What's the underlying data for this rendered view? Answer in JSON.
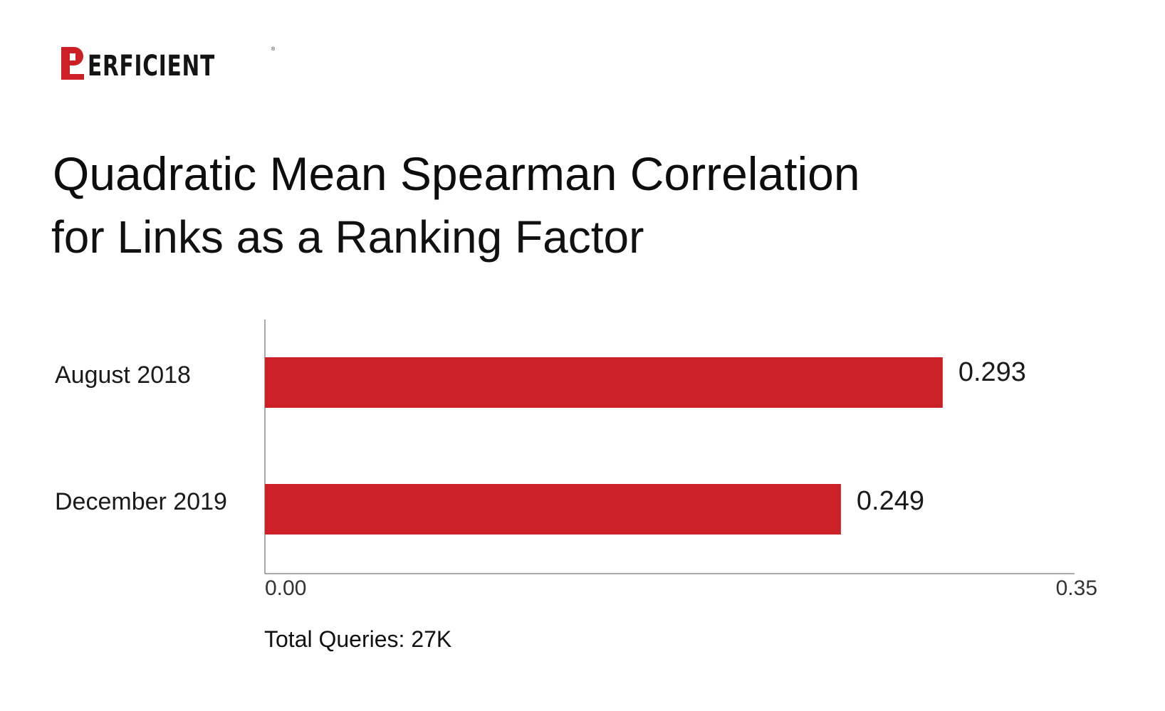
{
  "brand": {
    "logo_text": "ERFICIENT",
    "accent_color": "#cc2026",
    "registered_mark": "®"
  },
  "chart_data": {
    "type": "bar",
    "orientation": "horizontal",
    "title": "Quadratic Mean Spearman Correlation",
    "subtitle": "for Links as a Ranking Factor",
    "categories": [
      "August 2018",
      "December 2019"
    ],
    "values": [
      0.293,
      0.249
    ],
    "value_labels": [
      "0.293",
      "0.249"
    ],
    "xlim": [
      0,
      0.35
    ],
    "x_tick_labels": [
      "0.00",
      "0.35"
    ],
    "bar_color": "#cc2026",
    "grid": false,
    "legend": "none"
  },
  "footnote": "Total Queries: 27K"
}
